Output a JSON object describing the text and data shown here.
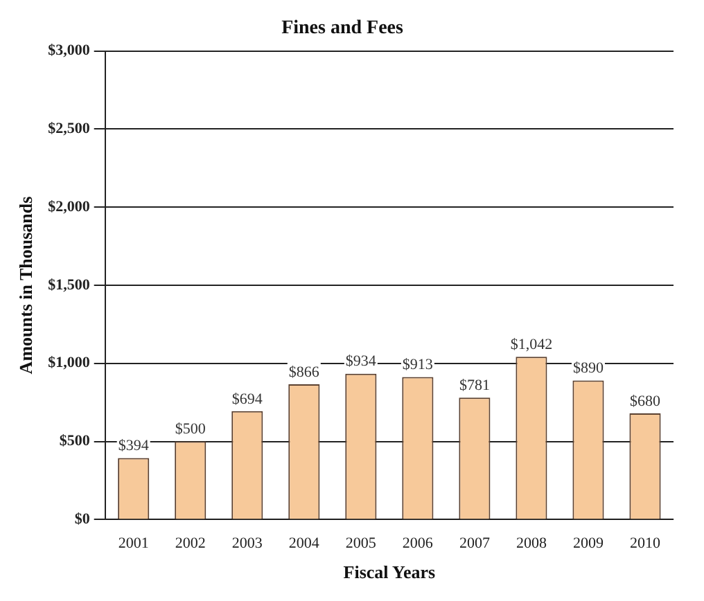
{
  "chart_data": {
    "type": "bar",
    "title": "Fines and Fees",
    "xlabel": "Fiscal Years",
    "ylabel": "Amounts in Thousands",
    "categories": [
      "2001",
      "2002",
      "2003",
      "2004",
      "2005",
      "2006",
      "2007",
      "2008",
      "2009",
      "2010"
    ],
    "values": [
      394,
      500,
      694,
      866,
      934,
      913,
      781,
      1042,
      890,
      680
    ],
    "value_labels": [
      "$394",
      "$500",
      "$694",
      "$866",
      "$934",
      "$913",
      "$781",
      "$1,042",
      "$890",
      "$680"
    ],
    "color": "#f7c99a",
    "ylim": [
      0,
      3000
    ],
    "yticks": [
      {
        "value": 0,
        "label": "$0"
      },
      {
        "value": 500,
        "label": "$500"
      },
      {
        "value": 1000,
        "label": "$1,000"
      },
      {
        "value": 1500,
        "label": "$1,500"
      },
      {
        "value": 2000,
        "label": "$2,000"
      },
      {
        "value": 2500,
        "label": "$2,500"
      },
      {
        "value": 3000,
        "label": "$3,000"
      }
    ],
    "grid": "y"
  }
}
